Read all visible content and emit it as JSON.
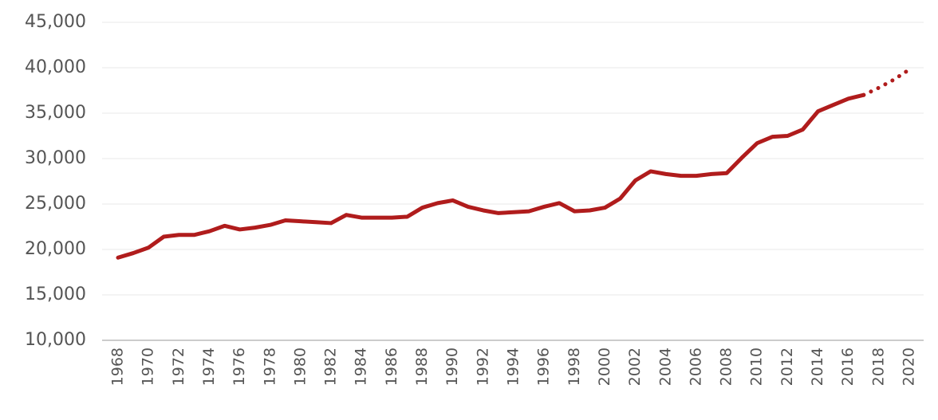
{
  "chart_data": {
    "type": "line",
    "x": [
      1968,
      1969,
      1970,
      1971,
      1972,
      1973,
      1974,
      1975,
      1976,
      1977,
      1978,
      1979,
      1980,
      1981,
      1982,
      1983,
      1984,
      1985,
      1986,
      1987,
      1988,
      1989,
      1990,
      1991,
      1992,
      1993,
      1994,
      1995,
      1996,
      1997,
      1998,
      1999,
      2000,
      2001,
      2002,
      2003,
      2004,
      2005,
      2006,
      2007,
      2008,
      2009,
      2010,
      2011,
      2012,
      2013,
      2014,
      2015,
      2016,
      2017,
      2018,
      2019,
      2020
    ],
    "series": [
      {
        "color": "#b01c1c",
        "style": "solid",
        "values": [
          19100,
          19600,
          20200,
          21400,
          21600,
          21600,
          22000,
          22600,
          22200,
          22400,
          22700,
          23200,
          23100,
          23000,
          22900,
          23800,
          23500,
          23500,
          23500,
          23600,
          24600,
          25100,
          25400,
          24700,
          24300,
          24000,
          24100,
          24200,
          24700,
          25100,
          24200,
          24300,
          24600,
          25600,
          27600,
          28600,
          28300,
          28100,
          28100,
          28300,
          28400,
          30100,
          31700,
          32400,
          32500,
          33200,
          35200,
          35900,
          36600,
          37000,
          null,
          null,
          null
        ]
      },
      {
        "color": "#b01c1c",
        "style": "dotted",
        "values": [
          null,
          null,
          null,
          null,
          null,
          null,
          null,
          null,
          null,
          null,
          null,
          null,
          null,
          null,
          null,
          null,
          null,
          null,
          null,
          null,
          null,
          null,
          null,
          null,
          null,
          null,
          null,
          null,
          null,
          null,
          null,
          null,
          null,
          null,
          null,
          null,
          null,
          null,
          null,
          null,
          null,
          null,
          null,
          null,
          null,
          null,
          null,
          null,
          null,
          37000,
          37800,
          38700,
          39800
        ]
      }
    ],
    "xlim": [
      1968,
      2020
    ],
    "xticks": [
      1968,
      1970,
      1972,
      1974,
      1976,
      1978,
      1980,
      1982,
      1984,
      1986,
      1988,
      1990,
      1992,
      1994,
      1996,
      1998,
      2000,
      2002,
      2004,
      2006,
      2008,
      2010,
      2012,
      2014,
      2016,
      2018,
      2020
    ],
    "ylim": [
      10000,
      45000
    ],
    "yticks": [
      {
        "value": 10000,
        "label": "10,000"
      },
      {
        "value": 15000,
        "label": "15,000"
      },
      {
        "value": 20000,
        "label": "20,000"
      },
      {
        "value": 25000,
        "label": "25,000"
      },
      {
        "value": 30000,
        "label": "30,000"
      },
      {
        "value": 35000,
        "label": "35,000"
      },
      {
        "value": 40000,
        "label": "40,000"
      },
      {
        "value": 45000,
        "label": "45,000"
      }
    ],
    "grid": true
  }
}
